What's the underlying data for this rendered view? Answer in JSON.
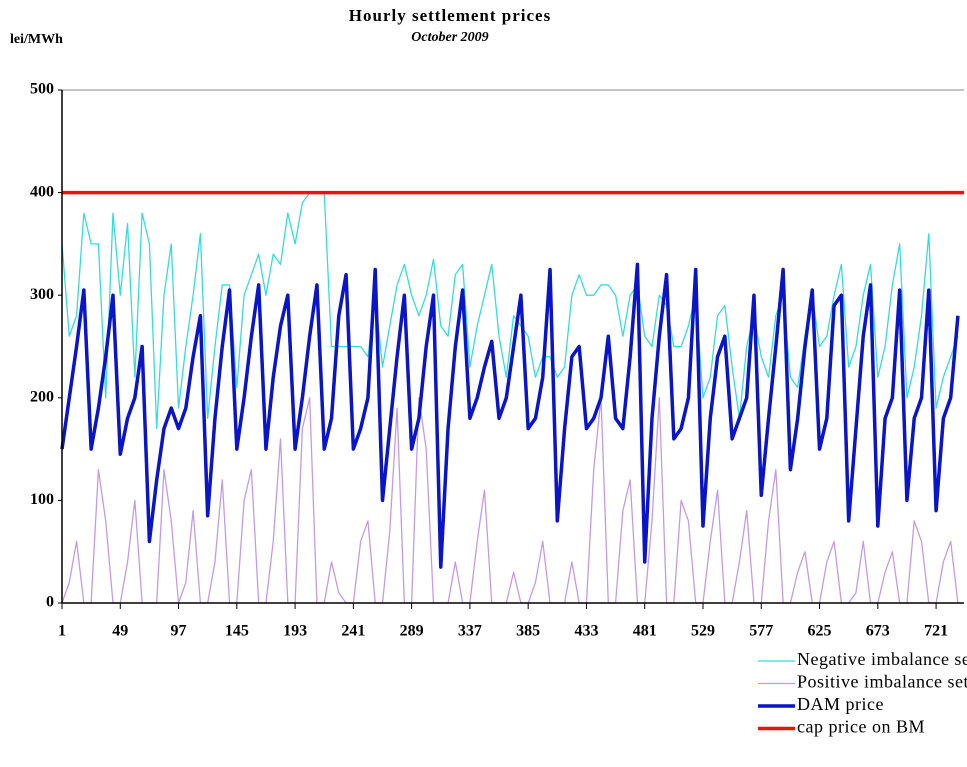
{
  "chart_data": {
    "type": "line",
    "title": "Hourly settlement prices",
    "subtitle": "October 2009",
    "y_label": "lei/MWh",
    "x": [
      1,
      7,
      13,
      19,
      25,
      31,
      37,
      43,
      49,
      55,
      61,
      67,
      73,
      79,
      85,
      91,
      97,
      103,
      109,
      115,
      121,
      127,
      133,
      139,
      145,
      151,
      157,
      163,
      169,
      175,
      181,
      187,
      193,
      199,
      205,
      211,
      217,
      223,
      229,
      235,
      241,
      247,
      253,
      259,
      265,
      271,
      277,
      283,
      289,
      295,
      301,
      307,
      313,
      319,
      325,
      331,
      337,
      343,
      349,
      355,
      361,
      367,
      373,
      379,
      385,
      391,
      397,
      403,
      409,
      415,
      421,
      427,
      433,
      439,
      445,
      451,
      457,
      463,
      469,
      475,
      481,
      487,
      493,
      499,
      505,
      511,
      517,
      523,
      529,
      535,
      541,
      547,
      553,
      559,
      565,
      571,
      577,
      583,
      589,
      595,
      601,
      607,
      613,
      619,
      625,
      631,
      637,
      643,
      649,
      655,
      661,
      667,
      673,
      679,
      685,
      691,
      697,
      703,
      709,
      715,
      721,
      727,
      733,
      739
    ],
    "xlim": [
      1,
      744
    ],
    "xticks": [
      1,
      49,
      97,
      145,
      193,
      241,
      289,
      337,
      385,
      433,
      481,
      529,
      577,
      625,
      673,
      721
    ],
    "ylim": [
      0,
      500
    ],
    "yticks": [
      0,
      100,
      200,
      300,
      400,
      500
    ],
    "series": [
      {
        "name": "Negative imbalance settlement price",
        "color": "#33dddd",
        "width": 1.3,
        "values": [
          350,
          260,
          280,
          380,
          350,
          350,
          200,
          380,
          300,
          370,
          220,
          380,
          350,
          170,
          300,
          350,
          190,
          250,
          300,
          360,
          180,
          250,
          310,
          310,
          210,
          300,
          320,
          340,
          300,
          340,
          330,
          380,
          350,
          390,
          400,
          400,
          400,
          250,
          250,
          250,
          250,
          250,
          240,
          300,
          230,
          270,
          310,
          330,
          300,
          280,
          300,
          335,
          270,
          260,
          320,
          330,
          230,
          270,
          300,
          330,
          260,
          220,
          280,
          270,
          260,
          220,
          240,
          240,
          220,
          230,
          300,
          320,
          300,
          300,
          310,
          310,
          300,
          260,
          300,
          310,
          260,
          250,
          300,
          290,
          250,
          250,
          270,
          300,
          200,
          220,
          280,
          290,
          230,
          180,
          250,
          280,
          240,
          220,
          280,
          300,
          220,
          210,
          260,
          300,
          250,
          260,
          300,
          330,
          230,
          250,
          300,
          330,
          220,
          250,
          310,
          350,
          200,
          230,
          280,
          360,
          190,
          220,
          240,
          260
        ]
      },
      {
        "name": "Positive imbalance settlement price",
        "color": "#c49ae6",
        "width": 1.3,
        "values": [
          0,
          20,
          60,
          0,
          0,
          130,
          80,
          0,
          0,
          40,
          100,
          0,
          0,
          0,
          130,
          80,
          0,
          20,
          90,
          0,
          0,
          40,
          120,
          0,
          0,
          100,
          130,
          0,
          0,
          60,
          160,
          0,
          0,
          170,
          200,
          0,
          0,
          40,
          10,
          0,
          0,
          60,
          80,
          0,
          0,
          70,
          190,
          0,
          0,
          200,
          150,
          0,
          0,
          0,
          40,
          0,
          0,
          60,
          110,
          0,
          0,
          0,
          30,
          0,
          0,
          20,
          60,
          0,
          0,
          0,
          40,
          0,
          0,
          130,
          200,
          0,
          0,
          90,
          120,
          0,
          0,
          80,
          200,
          0,
          0,
          100,
          80,
          0,
          0,
          60,
          110,
          0,
          0,
          40,
          90,
          0,
          0,
          80,
          130,
          0,
          0,
          30,
          50,
          0,
          0,
          40,
          60,
          0,
          0,
          10,
          60,
          0,
          0,
          30,
          50,
          0,
          0,
          80,
          60,
          0,
          0,
          40,
          60,
          0
        ]
      },
      {
        "name": "DAM price",
        "color": "#0a14c8",
        "width": 3.5,
        "values": [
          150,
          200,
          250,
          305,
          150,
          190,
          240,
          300,
          145,
          180,
          200,
          250,
          60,
          120,
          170,
          190,
          170,
          190,
          240,
          280,
          85,
          180,
          250,
          305,
          150,
          200,
          260,
          310,
          150,
          220,
          270,
          300,
          150,
          200,
          260,
          310,
          150,
          180,
          280,
          320,
          150,
          170,
          200,
          325,
          100,
          170,
          240,
          300,
          150,
          180,
          250,
          300,
          35,
          170,
          250,
          305,
          180,
          200,
          230,
          255,
          180,
          200,
          250,
          300,
          170,
          180,
          220,
          325,
          80,
          170,
          240,
          250,
          170,
          180,
          200,
          260,
          180,
          170,
          240,
          330,
          40,
          180,
          260,
          320,
          160,
          170,
          200,
          325,
          75,
          180,
          240,
          260,
          160,
          180,
          200,
          300,
          105,
          180,
          250,
          325,
          130,
          180,
          250,
          305,
          150,
          180,
          290,
          300,
          80,
          170,
          260,
          310,
          75,
          180,
          200,
          305,
          100,
          180,
          200,
          305,
          90,
          180,
          200,
          280
        ]
      },
      {
        "name": "cap price on BM",
        "color": "#ee1111",
        "width": 3.5,
        "x": [
          1,
          744
        ],
        "values": [
          400,
          400
        ]
      }
    ]
  }
}
